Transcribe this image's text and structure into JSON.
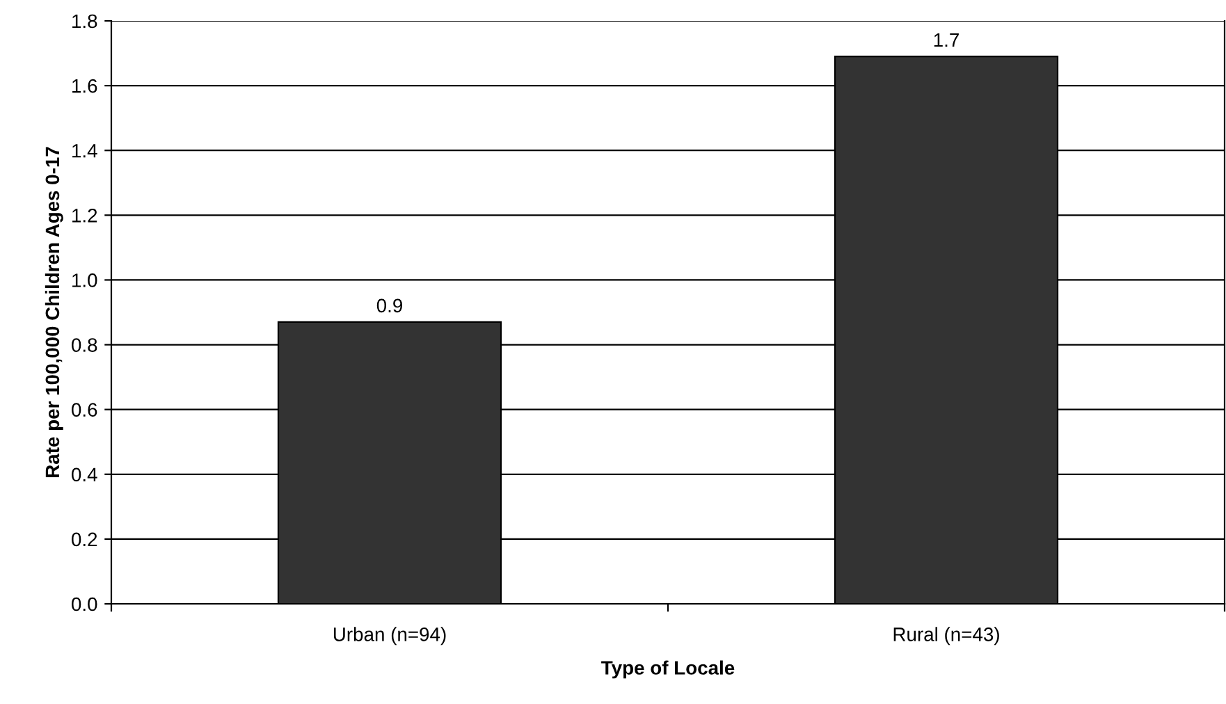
{
  "chart_data": {
    "type": "bar",
    "xlabel": "Type of Locale",
    "ylabel": "Rate per 100,000 Children Ages 0-17",
    "categories": [
      "Urban (n=94)",
      "Rural (n=43)"
    ],
    "values": [
      0.87,
      1.69
    ],
    "value_labels": [
      "0.9",
      "1.7"
    ],
    "color": "#333333",
    "ylim": [
      0,
      1.8
    ],
    "yticks": [
      {
        "value": 0,
        "label": "0.0"
      },
      {
        "value": 0.2,
        "label": "0.2"
      },
      {
        "value": 0.4,
        "label": "0.4"
      },
      {
        "value": 0.6,
        "label": "0.6"
      },
      {
        "value": 0.8,
        "label": "0.8"
      },
      {
        "value": 1.0,
        "label": "1.0"
      },
      {
        "value": 1.2,
        "label": "1.2"
      },
      {
        "value": 1.4,
        "label": "1.4"
      },
      {
        "value": 1.6,
        "label": "1.6"
      },
      {
        "value": 1.8,
        "label": "1.8"
      }
    ],
    "grid": "y"
  }
}
